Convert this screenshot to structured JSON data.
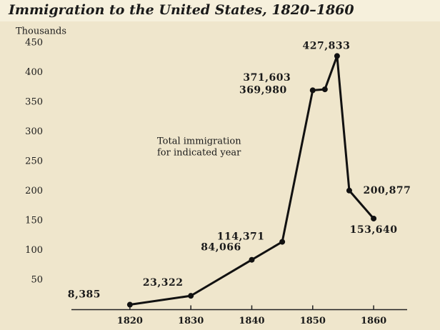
{
  "chart_data": {
    "type": "line",
    "title": "Immigration to the United States, 1820–1860",
    "y_label": "Thousands",
    "annotation": [
      "Total immigration",
      "for indicated year"
    ],
    "x": [
      1820,
      1830,
      1840,
      1845,
      1850,
      1852,
      1854,
      1856,
      1860
    ],
    "series": [
      {
        "color": "#111111",
        "values": [
          8.385,
          23.322,
          84.066,
          114.371,
          369.98,
          371.603,
          427.833,
          200.877,
          153.64
        ],
        "value_labels": [
          "8,385",
          "23,322",
          "84,066",
          "114,371",
          "369,980",
          "371,603",
          "427,833",
          "200,877",
          "153,640"
        ]
      }
    ],
    "xlim": [
      1810.4,
      1865.5
    ],
    "xticks": [
      1820,
      1830,
      1840,
      1850,
      1860
    ],
    "ylim": [
      0,
      450
    ],
    "yticks": [
      50,
      100,
      150,
      200,
      250,
      300,
      350,
      400,
      450
    ]
  }
}
